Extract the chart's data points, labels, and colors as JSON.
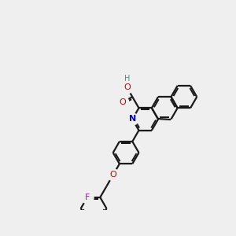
{
  "bg_color": "#efefef",
  "bond_color": "#1a1a1a",
  "N_color": "#0000cc",
  "O_color": "#cc0000",
  "F_color": "#cc00cc",
  "H_color": "#4a8a8a",
  "bond_lw": 1.6,
  "figsize": [
    3.0,
    3.0
  ],
  "dpi": 100,
  "xlim": [
    -1.55,
    1.55
  ],
  "ylim": [
    -1.65,
    1.45
  ]
}
